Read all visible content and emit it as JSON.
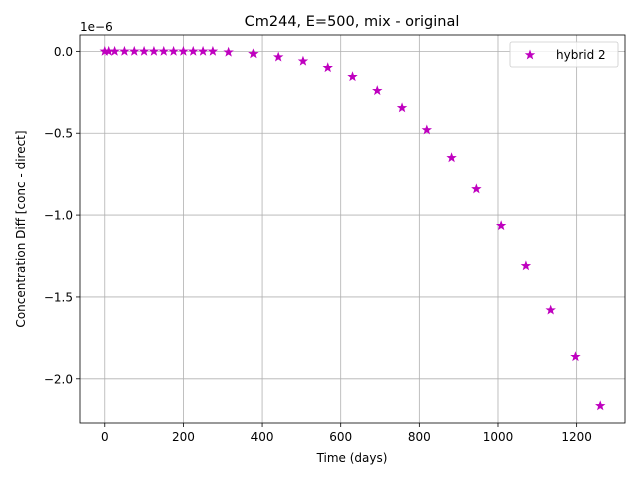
{
  "chart_data": {
    "type": "scatter",
    "title": "Cm244, E=500, mix - original",
    "xlabel": "Time (days)",
    "ylabel": "Concentration Diff [conc - direct]",
    "y_offset_text": "1e−6",
    "xlim": [
      -63,
      1323
    ],
    "ylim": [
      -2.27,
      0.1
    ],
    "ylim_scale": "1e-6",
    "grid": true,
    "legend_position": "top-right",
    "x_ticks": [
      0,
      200,
      400,
      600,
      800,
      1000,
      1200
    ],
    "x_tick_labels": [
      "0",
      "200",
      "400",
      "600",
      "800",
      "1000",
      "1200"
    ],
    "y_ticks": [
      0.0,
      -0.5,
      -1.0,
      -1.5,
      -2.0
    ],
    "y_tick_labels": [
      "0.0",
      "−0.5",
      "−1.0",
      "−1.5",
      "−2.0"
    ],
    "series": [
      {
        "name": "hybrid 2",
        "color": "#bf00bf",
        "marker": "star",
        "x": [
          0,
          10,
          25,
          50,
          75,
          100,
          125,
          150,
          175,
          200,
          225,
          250,
          275,
          315,
          378,
          441,
          504,
          567,
          630,
          693,
          756,
          819,
          882,
          945,
          1008,
          1071,
          1134,
          1197,
          1260
        ],
        "y": [
          0.0,
          0.0,
          0.0,
          0.0,
          0.0,
          0.0,
          0.0,
          0.0,
          0.0,
          0.0,
          0.0,
          0.0,
          0.0,
          -0.005,
          -0.015,
          -0.035,
          -0.06,
          -0.1,
          -0.155,
          -0.24,
          -0.345,
          -0.48,
          -0.65,
          -0.84,
          -1.065,
          -1.31,
          -1.58,
          -1.865,
          -2.165
        ]
      }
    ]
  }
}
